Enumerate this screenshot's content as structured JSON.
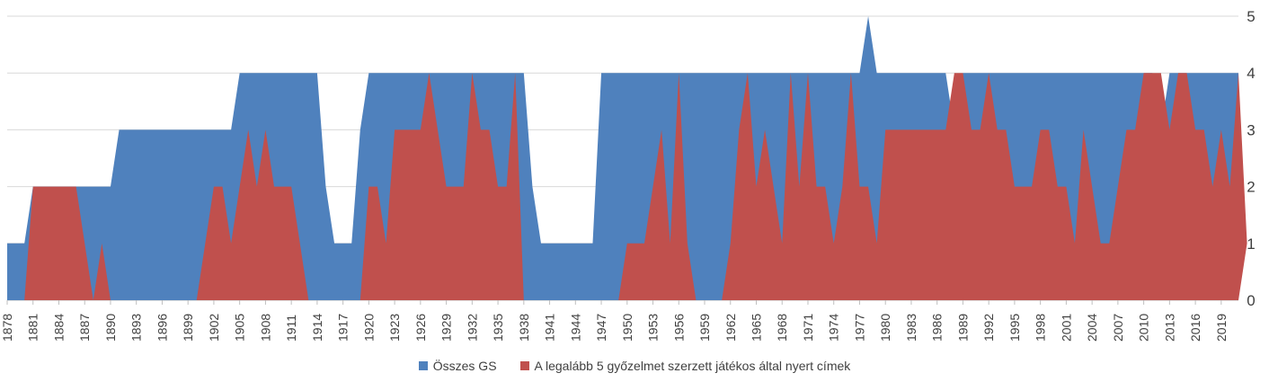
{
  "chart_data": {
    "type": "area",
    "x_start": 1878,
    "x_end": 2019,
    "x_tick_labels": [
      "1878",
      "1881",
      "1884",
      "1887",
      "1890",
      "1893",
      "1896",
      "1899",
      "1902",
      "1905",
      "1908",
      "1911",
      "1914",
      "1917",
      "1920",
      "1923",
      "1926",
      "1929",
      "1932",
      "1935",
      "1938",
      "1941",
      "1944",
      "1947",
      "1950",
      "1953",
      "1956",
      "1959",
      "1962",
      "1965",
      "1968",
      "1971",
      "1974",
      "1977",
      "1980",
      "1983",
      "1986",
      "1989",
      "1992",
      "1995",
      "1998",
      "2001",
      "2004",
      "2007",
      "2010",
      "2013",
      "2016",
      "2019"
    ],
    "ylim": [
      0,
      5
    ],
    "y_ticks": [
      0,
      1,
      2,
      3,
      4,
      5
    ],
    "y_axis_side": "right",
    "grid": true,
    "legend_position": "bottom",
    "series": [
      {
        "name": "Összes GS",
        "color": "#4F81BD",
        "values": [
          1,
          1,
          1,
          2,
          2,
          2,
          2,
          2,
          2,
          2,
          2,
          2,
          2,
          3,
          3,
          3,
          3,
          3,
          3,
          3,
          3,
          3,
          3,
          3,
          3,
          3,
          3,
          4,
          4,
          4,
          4,
          4,
          4,
          4,
          4,
          4,
          4,
          2,
          1,
          1,
          1,
          3,
          4,
          4,
          4,
          4,
          4,
          4,
          4,
          4,
          4,
          4,
          4,
          4,
          4,
          4,
          4,
          4,
          4,
          4,
          4,
          2,
          1,
          1,
          1,
          1,
          1,
          1,
          1,
          4,
          4,
          4,
          4,
          4,
          4,
          4,
          4,
          4,
          4,
          4,
          4,
          4,
          4,
          4,
          4,
          4,
          4,
          4,
          4,
          4,
          4,
          4,
          4,
          4,
          4,
          4,
          4,
          4,
          4,
          4,
          5,
          4,
          4,
          4,
          4,
          4,
          4,
          4,
          4,
          4,
          3,
          4,
          4,
          4,
          4,
          4,
          4,
          4,
          4,
          4,
          4,
          4,
          4,
          4,
          4,
          4,
          4,
          4,
          4,
          4,
          4,
          4,
          4,
          4,
          3,
          4,
          4,
          4,
          4,
          4,
          4,
          4,
          4,
          4
        ]
      },
      {
        "name": "A legalább 5 győzelmet szerzett játékos által nyert címek",
        "color": "#C0504D",
        "values": [
          0,
          0,
          0,
          2,
          2,
          2,
          2,
          2,
          2,
          1,
          0,
          1,
          0,
          0,
          0,
          0,
          0,
          0,
          0,
          0,
          0,
          0,
          0,
          1,
          2,
          2,
          1,
          2,
          3,
          2,
          3,
          2,
          2,
          2,
          1,
          0,
          0,
          0,
          0,
          0,
          0,
          0,
          2,
          2,
          1,
          3,
          3,
          3,
          3,
          4,
          3,
          2,
          2,
          2,
          4,
          3,
          3,
          2,
          2,
          4,
          0,
          0,
          0,
          0,
          0,
          0,
          0,
          0,
          0,
          0,
          0,
          0,
          1,
          1,
          1,
          2,
          3,
          1,
          4,
          1,
          0,
          0,
          0,
          0,
          1,
          3,
          4,
          2,
          3,
          2,
          1,
          4,
          2,
          4,
          2,
          2,
          1,
          2,
          4,
          2,
          2,
          1,
          3,
          3,
          3,
          3,
          3,
          3,
          3,
          3,
          4,
          4,
          3,
          3,
          4,
          3,
          3,
          2,
          2,
          2,
          3,
          3,
          2,
          2,
          1,
          3,
          2,
          1,
          1,
          2,
          3,
          3,
          4,
          4,
          4,
          3,
          4,
          4,
          3,
          3,
          2,
          3,
          2,
          4,
          1
        ]
      }
    ]
  }
}
